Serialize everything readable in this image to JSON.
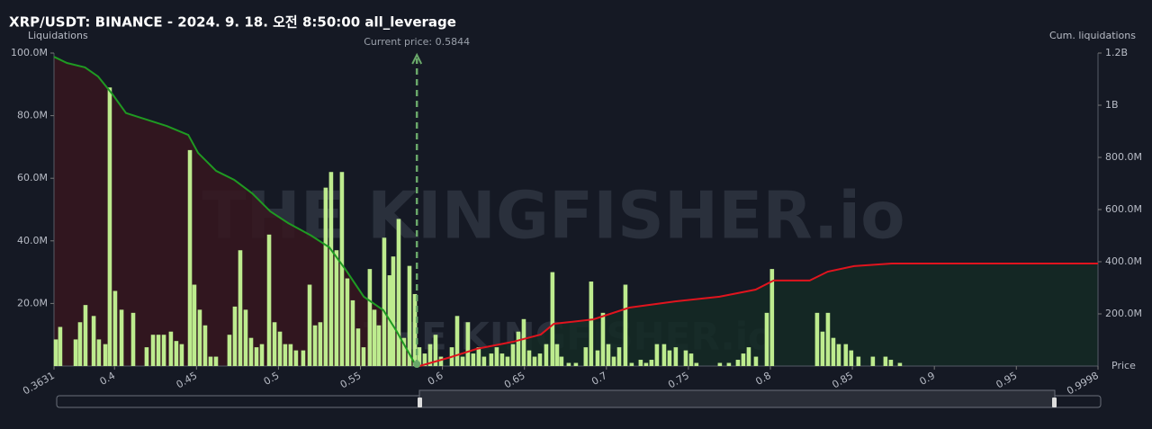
{
  "chart_data": {
    "type": "bar",
    "title": "XRP/USDT: BINANCE - 2024. 9. 18. 오전 8:50:00 all_leverage",
    "y_label": "Liquidations",
    "y2_label": "Cum. liquidations",
    "x_label": "Price",
    "watermark": "THE KINGFISHER.io",
    "annotation": {
      "text": "Current price: 0.5844",
      "x": 0.5844,
      "color": "#6aa86a"
    },
    "xlim": [
      0.3631,
      0.9998
    ],
    "xticks": [
      0.3631,
      0.4,
      0.45,
      0.5,
      0.55,
      0.6,
      0.65,
      0.7,
      0.75,
      0.8,
      0.85,
      0.9,
      0.95,
      0.9998
    ],
    "ylim": [
      0,
      100000000
    ],
    "yticks": [
      {
        "value": 20000000,
        "label": "20.0M"
      },
      {
        "value": 40000000,
        "label": "40.0M"
      },
      {
        "value": 60000000,
        "label": "60.0M"
      },
      {
        "value": 80000000,
        "label": "80.0M"
      },
      {
        "value": 100000000,
        "label": "100.0M"
      }
    ],
    "y2lim": [
      0,
      1200000000
    ],
    "y2ticks": [
      {
        "value": 200000000,
        "label": "200.0M"
      },
      {
        "value": 400000000,
        "label": "400.0M"
      },
      {
        "value": 600000000,
        "label": "600.0M"
      },
      {
        "value": 800000000,
        "label": "800.0M"
      },
      {
        "value": 1000000000,
        "label": "1B"
      },
      {
        "value": 1200000000,
        "label": "1.2B"
      }
    ],
    "x": [
      0.3642,
      0.3669,
      0.3763,
      0.379,
      0.3823,
      0.3873,
      0.3905,
      0.3944,
      0.3971,
      0.4004,
      0.4043,
      0.4114,
      0.4196,
      0.4235,
      0.4268,
      0.4301,
      0.4344,
      0.4377,
      0.441,
      0.446,
      0.4487,
      0.452,
      0.4553,
      0.4586,
      0.4619,
      0.4701,
      0.4734,
      0.4767,
      0.48,
      0.4833,
      0.4866,
      0.4899,
      0.4943,
      0.4976,
      0.5009,
      0.5041,
      0.5074,
      0.5107,
      0.5151,
      0.519,
      0.5223,
      0.5255,
      0.5288,
      0.5321,
      0.5354,
      0.5387,
      0.542,
      0.5453,
      0.5486,
      0.5519,
      0.5557,
      0.5585,
      0.5612,
      0.5645,
      0.5678,
      0.57,
      0.5733,
      0.5766,
      0.5799,
      0.5832,
      0.5859,
      0.5892,
      0.5925,
      0.5958,
      0.5991,
      0.6057,
      0.609,
      0.6123,
      0.6155,
      0.6188,
      0.6221,
      0.6254,
      0.6298,
      0.6331,
      0.6364,
      0.6397,
      0.643,
      0.6463,
      0.6496,
      0.6529,
      0.6562,
      0.6595,
      0.6633,
      0.6671,
      0.6699,
      0.6726,
      0.677,
      0.6814,
      0.6874,
      0.6907,
      0.6946,
      0.6979,
      0.7012,
      0.7045,
      0.7078,
      0.7116,
      0.7154,
      0.7209,
      0.7242,
      0.7275,
      0.7308,
      0.7352,
      0.7385,
      0.7423,
      0.7484,
      0.7517,
      0.7549,
      0.7692,
      0.7747,
      0.7802,
      0.7835,
      0.7868,
      0.7912,
      0.7978,
      0.801,
      0.8285,
      0.8318,
      0.8351,
      0.8384,
      0.8417,
      0.846,
      0.8493,
      0.8537,
      0.8625,
      0.8702,
      0.8735,
      0.879
    ],
    "series": [
      {
        "color": "#bdeb8e",
        "values": [
          8500000,
          12500000,
          8500000,
          14000000,
          19500000,
          16000000,
          8500000,
          7000000,
          89000000,
          24000000,
          18000000,
          17000000,
          6000000,
          10000000,
          10000000,
          10000000,
          11000000,
          8000000,
          7000000,
          69000000,
          26000000,
          18000000,
          13000000,
          3000000,
          3000000,
          10000000,
          19000000,
          37000000,
          18000000,
          9000000,
          6000000,
          7000000,
          42000000,
          14000000,
          11000000,
          7000000,
          7000000,
          5000000,
          5000000,
          26000000,
          13000000,
          14000000,
          57000000,
          62000000,
          37000000,
          62000000,
          28000000,
          21000000,
          12000000,
          6000000,
          31000000,
          18000000,
          13000000,
          41000000,
          29000000,
          35000000,
          47000000,
          9000000,
          32000000,
          23000000,
          6000000,
          4000000,
          7000000,
          10000000,
          3000000,
          6000000,
          16000000,
          3000000,
          14000000,
          4000000,
          6000000,
          3000000,
          4000000,
          6000000,
          4000000,
          3000000,
          7000000,
          11000000,
          15000000,
          5000000,
          3000000,
          4000000,
          7000000,
          30000000,
          7000000,
          3000000,
          1000000,
          1000000,
          6000000,
          27000000,
          5000000,
          17000000,
          7000000,
          3000000,
          6000000,
          26000000,
          1000000,
          2000000,
          1000000,
          2000000,
          7000000,
          7000000,
          5000000,
          6000000,
          5000000,
          4000000,
          1000000,
          1000000,
          1000000,
          2000000,
          4000000,
          6000000,
          3000000,
          17000000,
          31000000,
          17000000,
          11000000,
          17000000,
          9000000,
          7000000,
          7000000,
          5000000,
          3000000,
          3000000,
          3000000,
          2000000,
          1000000
        ]
      },
      {
        "type": "line",
        "axis": "y2",
        "color": "#1f9a22",
        "fill": "#36161f",
        "x": [
          0.363,
          0.371,
          0.382,
          0.39,
          0.399,
          0.407,
          0.418,
          0.432,
          0.445,
          0.451,
          0.462,
          0.473,
          0.484,
          0.495,
          0.506,
          0.52,
          0.531,
          0.541,
          0.552,
          0.564,
          0.572,
          0.584
        ],
        "values": [
          1186000000,
          1162000000,
          1145000000,
          1110000000,
          1040000000,
          970000000,
          948000000,
          920000000,
          886000000,
          817000000,
          748000000,
          714000000,
          662000000,
          593000000,
          548000000,
          500000000,
          455000000,
          369000000,
          266000000,
          214000000,
          134000000,
          0
        ]
      },
      {
        "type": "line",
        "axis": "y2",
        "color": "#e0141e",
        "fill": "#142a24",
        "x": [
          0.586,
          0.605,
          0.621,
          0.643,
          0.66,
          0.668,
          0.692,
          0.714,
          0.742,
          0.769,
          0.791,
          0.802,
          0.824,
          0.835,
          0.851,
          0.874,
          0.9998
        ],
        "values": [
          0,
          34000000,
          66000000,
          93000000,
          121000000,
          162000000,
          179000000,
          224000000,
          248000000,
          266000000,
          293000000,
          328000000,
          328000000,
          362000000,
          383000000,
          393000000,
          393000000
        ]
      }
    ]
  }
}
